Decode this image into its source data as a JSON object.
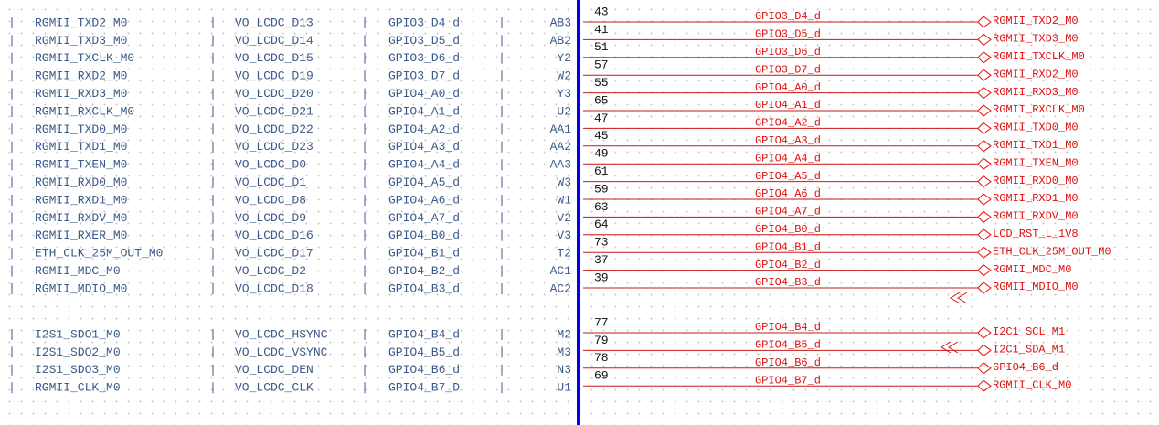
{
  "left_table": {
    "groups": [
      {
        "rows": [
          [
            "RGMII_TXD2_M0",
            "VO_LCDC_D13",
            "GPIO3_D4_d",
            "AB3"
          ],
          [
            "RGMII_TXD3_M0",
            "VO_LCDC_D14",
            "GPIO3_D5_d",
            "AB2"
          ],
          [
            "RGMII_TXCLK_M0",
            "VO_LCDC_D15",
            "GPIO3_D6_d",
            "Y2"
          ],
          [
            "RGMII_RXD2_M0",
            "VO_LCDC_D19",
            "GPIO3_D7_d",
            "W2"
          ],
          [
            "RGMII_RXD3_M0",
            "VO_LCDC_D20",
            "GPIO4_A0_d",
            "Y3"
          ],
          [
            "RGMII_RXCLK_M0",
            "VO_LCDC_D21",
            "GPIO4_A1_d",
            "U2"
          ],
          [
            "RGMII_TXD0_M0",
            "VO_LCDC_D22",
            "GPIO4_A2_d",
            "AA1"
          ],
          [
            "RGMII_TXD1_M0",
            "VO_LCDC_D23",
            "GPIO4_A3_d",
            "AA2"
          ],
          [
            "RGMII_TXEN_M0",
            "VO_LCDC_D0",
            "GPIO4_A4_d",
            "AA3"
          ],
          [
            "RGMII_RXD0_M0",
            "VO_LCDC_D1",
            "GPIO4_A5_d",
            "W3"
          ],
          [
            "RGMII_RXD1_M0",
            "VO_LCDC_D8",
            "GPIO4_A6_d",
            "W1"
          ],
          [
            "RGMII_RXDV_M0",
            "VO_LCDC_D9",
            "GPIO4_A7_d",
            "V2"
          ],
          [
            "RGMII_RXER_M0",
            "VO_LCDC_D16",
            "GPIO4_B0_d",
            "V3"
          ],
          [
            "ETH_CLK_25M_OUT_M0",
            "VO_LCDC_D17",
            "GPIO4_B1_d",
            "T2"
          ],
          [
            "RGMII_MDC_M0",
            "VO_LCDC_D2",
            "GPIO4_B2_d",
            "AC1"
          ],
          [
            "RGMII_MDIO_M0",
            "VO_LCDC_D18",
            "GPIO4_B3_d",
            "AC2"
          ]
        ]
      },
      {
        "rows": [
          [
            "I2S1_SDO1_M0",
            "VO_LCDC_HSYNC",
            "GPIO4_B4_d",
            "M2"
          ],
          [
            "I2S1_SDO2_M0",
            "VO_LCDC_VSYNC",
            "GPIO4_B5_d",
            "M3"
          ],
          [
            "I2S1_SDO3_M0",
            "VO_LCDC_DEN",
            "GPIO4_B6_d",
            "N3"
          ],
          [
            "RGMII_CLK_M0",
            "VO_LCDC_CLK",
            "GPIO4_B7_D",
            "U1"
          ]
        ]
      }
    ]
  },
  "schematic": {
    "groups": [
      {
        "rows": [
          {
            "pin": 43,
            "net": "GPIO3_D4_d",
            "port": "RGMII_TXD2_M0"
          },
          {
            "pin": 41,
            "net": "GPIO3_D5_d",
            "port": "RGMII_TXD3_M0"
          },
          {
            "pin": 51,
            "net": "GPIO3_D6_d",
            "port": "RGMII_TXCLK_M0"
          },
          {
            "pin": 57,
            "net": "GPIO3_D7_d",
            "port": "RGMII_RXD2_M0"
          },
          {
            "pin": 55,
            "net": "GPIO4_A0_d",
            "port": "RGMII_RXD3_M0"
          },
          {
            "pin": 65,
            "net": "GPIO4_A1_d",
            "port": "RGMII_RXCLK_M0"
          },
          {
            "pin": 47,
            "net": "GPIO4_A2_d",
            "port": "RGMII_TXD0_M0"
          },
          {
            "pin": 45,
            "net": "GPIO4_A3_d",
            "port": "RGMII_TXD1_M0"
          },
          {
            "pin": 49,
            "net": "GPIO4_A4_d",
            "port": "RGMII_TXEN_M0"
          },
          {
            "pin": 61,
            "net": "GPIO4_A5_d",
            "port": "RGMII_RXD0_M0"
          },
          {
            "pin": 59,
            "net": "GPIO4_A6_d",
            "port": "RGMII_RXD1_M0"
          },
          {
            "pin": 63,
            "net": "GPIO4_A7_d",
            "port": "RGMII_RXDV_M0"
          },
          {
            "pin": 64,
            "net": "GPIO4_B0_d",
            "port": "LCD_RST_L_1V8"
          },
          {
            "pin": 73,
            "net": "GPIO4_B1_d",
            "port": "ETH_CLK_25M_OUT_M0"
          },
          {
            "pin": 37,
            "net": "GPIO4_B2_d",
            "port": "RGMII_MDC_M0"
          },
          {
            "pin": 39,
            "net": "GPIO4_B3_d",
            "port": "RGMII_MDIO_M0"
          }
        ]
      },
      {
        "rows": [
          {
            "pin": 77,
            "net": "GPIO4_B4_d",
            "port": "I2C1_SCL_M1"
          },
          {
            "pin": 79,
            "net": "GPIO4_B5_d",
            "port": "I2C1_SDA_M1"
          },
          {
            "pin": 78,
            "net": "GPIO4_B6_d",
            "port": "GPIO4_B6_d"
          },
          {
            "pin": 69,
            "net": "GPIO4_B7_d",
            "port": "RGMII_CLK_M0"
          }
        ]
      }
    ]
  }
}
